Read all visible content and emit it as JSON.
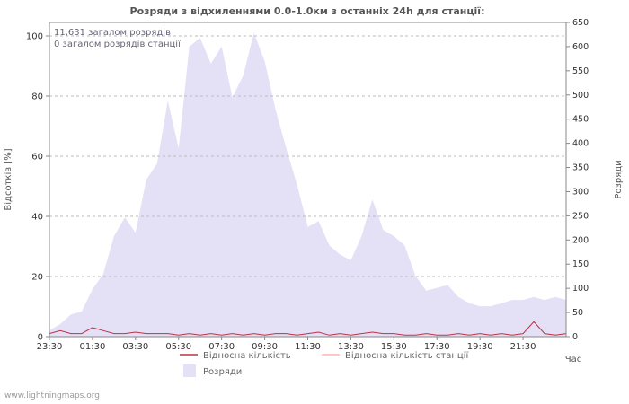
{
  "footer": {
    "text": "www.lightningmaps.org"
  },
  "chart_data": {
    "type": "area",
    "title": "Розряди з відхиленнями 0.0-1.0км з останніх 24h для станції:",
    "annotations": [
      "11,631 загалом розрядів",
      "0 загалом розрядів станції"
    ],
    "axes": {
      "xlabel": "Час",
      "ylabel_left": "Відсотків  [%]",
      "ylabel_right": "Розряди",
      "x_tick_labels": [
        "23:30",
        "01:30",
        "03:30",
        "05:30",
        "07:30",
        "09:30",
        "11:30",
        "13:30",
        "15:30",
        "17:30",
        "19:30",
        "21:30"
      ],
      "x_interval_minutes": 30,
      "y_left": {
        "min": 0,
        "max": 100,
        "ticks": [
          0,
          20,
          40,
          60,
          80,
          100
        ]
      },
      "y_right": {
        "min": 0,
        "max": 650,
        "ticks": [
          0,
          50,
          100,
          150,
          200,
          250,
          300,
          350,
          400,
          450,
          500,
          550,
          600,
          650
        ]
      },
      "grid": "dashed-horizontal"
    },
    "series": [
      {
        "name": "Розряди",
        "type": "area",
        "axis": "right",
        "color": "#e4e1f7",
        "values": [
          13,
          26,
          46,
          52,
          98,
          130,
          208,
          247,
          215,
          325,
          358,
          488,
          390,
          600,
          618,
          565,
          600,
          495,
          540,
          628,
          570,
          470,
          390,
          315,
          227,
          239,
          189,
          170,
          158,
          208,
          284,
          221,
          208,
          189,
          126,
          95,
          101,
          107,
          82,
          69,
          63,
          63,
          69,
          76,
          76,
          82,
          76,
          82,
          76
        ]
      },
      {
        "name": "Відносна кількість",
        "type": "line",
        "axis": "left",
        "color": "#bb3344",
        "values": [
          1,
          2,
          1,
          1,
          3,
          2,
          1,
          1,
          1.5,
          1,
          1,
          1,
          0.5,
          1,
          0.5,
          1,
          0.5,
          1,
          0.5,
          1,
          0.5,
          1,
          1,
          0.5,
          1,
          1.5,
          0.5,
          1,
          0.5,
          1,
          1.5,
          1,
          1,
          0.5,
          0.5,
          1,
          0.5,
          0.5,
          1,
          0.5,
          1,
          0.5,
          1,
          0.5,
          1,
          5,
          1,
          0.5,
          1
        ]
      },
      {
        "name": "Відносна кількість станції",
        "type": "line",
        "axis": "left",
        "color": "#ffb3b3",
        "values": [
          0,
          0,
          0,
          0,
          0,
          0,
          0,
          0,
          0,
          0,
          0,
          0,
          0,
          0,
          0,
          0,
          0,
          0,
          0,
          0,
          0,
          0,
          0,
          0,
          0,
          0,
          0,
          0,
          0,
          0,
          0,
          0,
          0,
          0,
          0,
          0,
          0,
          0,
          0,
          0,
          0,
          0,
          0,
          0,
          0,
          0,
          0,
          0,
          0
        ]
      }
    ],
    "legend": [
      {
        "label": "Відносна кількість",
        "color": "#bb3344",
        "swatch": "line"
      },
      {
        "label": "Відносна кількість станції",
        "color": "#ffb3b3",
        "swatch": "line"
      },
      {
        "label": "Розряди",
        "color": "#e4e1f7",
        "swatch": "area"
      }
    ]
  }
}
